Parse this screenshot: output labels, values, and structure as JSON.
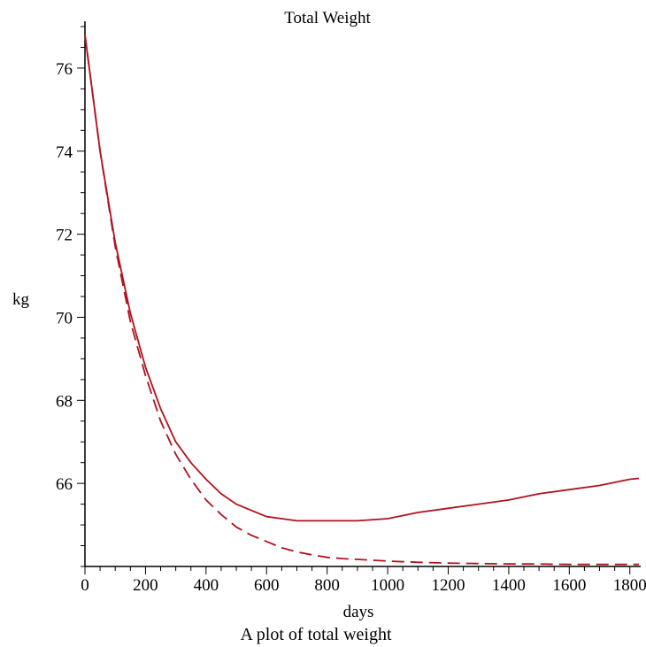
{
  "chart_data": {
    "type": "line",
    "title": "Total Weight",
    "xlabel": "days",
    "ylabel": "kg",
    "caption": "A plot of total weight",
    "xlim": [
      0,
      1830
    ],
    "ylim": [
      64,
      77
    ],
    "x_ticks": [
      0,
      200,
      400,
      600,
      800,
      1000,
      1200,
      1400,
      1600,
      1800
    ],
    "y_ticks": [
      66,
      68,
      70,
      72,
      74,
      76
    ],
    "grid": false,
    "legend": "none",
    "series": [
      {
        "style": "solid",
        "color": "#b0121e",
        "x": [
          0,
          50,
          100,
          150,
          200,
          250,
          300,
          350,
          400,
          450,
          500,
          550,
          600,
          650,
          700,
          750,
          800,
          850,
          900,
          1000,
          1100,
          1200,
          1300,
          1400,
          1500,
          1600,
          1700,
          1800,
          1830
        ],
        "y": [
          76.8,
          74.0,
          71.8,
          70.1,
          68.8,
          67.8,
          67.0,
          66.5,
          66.1,
          65.75,
          65.5,
          65.35,
          65.2,
          65.15,
          65.1,
          65.1,
          65.1,
          65.1,
          65.1,
          65.15,
          65.3,
          65.4,
          65.5,
          65.6,
          65.75,
          65.85,
          65.95,
          66.1,
          66.12
        ]
      },
      {
        "style": "dashed",
        "color": "#b0121e",
        "x": [
          0,
          50,
          100,
          150,
          200,
          250,
          300,
          350,
          400,
          450,
          500,
          550,
          600,
          650,
          700,
          750,
          800,
          850,
          900,
          1000,
          1100,
          1200,
          1300,
          1400,
          1500,
          1600,
          1700,
          1800,
          1830
        ],
        "y": [
          76.8,
          74.0,
          71.7,
          69.9,
          68.6,
          67.5,
          66.7,
          66.1,
          65.6,
          65.25,
          64.95,
          64.75,
          64.6,
          64.45,
          64.35,
          64.28,
          64.22,
          64.19,
          64.17,
          64.13,
          64.1,
          64.08,
          64.07,
          64.06,
          64.06,
          64.05,
          64.05,
          64.05,
          64.05
        ]
      }
    ]
  }
}
